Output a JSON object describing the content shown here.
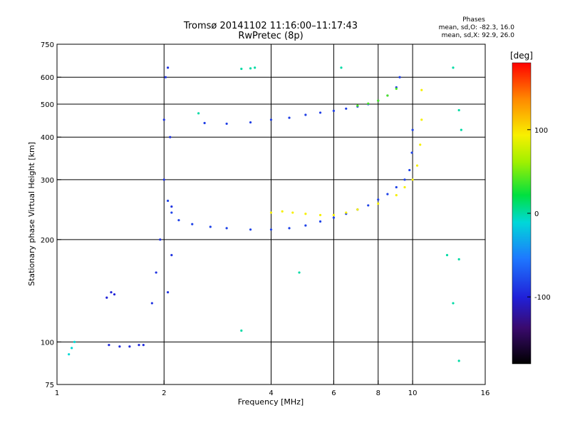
{
  "chart_data": {
    "type": "scatter",
    "title": "Tromsø 20141102 11:16:00–11:17:43",
    "subtitle": "RwPretec (8p)",
    "xlabel": "Frequency [MHz]",
    "ylabel": "Stationary phase Virtual Height [km]",
    "x_scale": "log",
    "y_scale": "log",
    "xlim": [
      1,
      16
    ],
    "ylim": [
      75,
      750
    ],
    "x_ticks": [
      1,
      2,
      4,
      6,
      8,
      10,
      16
    ],
    "y_ticks": [
      75,
      100,
      200,
      300,
      400,
      500,
      600,
      750
    ],
    "x_gridlines": [
      2,
      4,
      6,
      8,
      10
    ],
    "y_gridlines": [
      100,
      200,
      300,
      400,
      500,
      600
    ],
    "grid": true,
    "stats": {
      "title": "Phases",
      "line_o": "mean, sd,O: -82.3, 16.0",
      "line_x": "mean, sd,X:  92.9, 26.0"
    },
    "colorbar": {
      "label": "[deg]",
      "range": [
        -180,
        180
      ],
      "ticks": [
        100,
        0,
        -100
      ],
      "tick_labels": [
        "100",
        "0",
        "-100"
      ]
    },
    "traces": [
      {
        "description": "O-mode F-layer trace",
        "phase": -82,
        "points": [
          [
            2.05,
            260
          ],
          [
            2.1,
            240
          ],
          [
            2.2,
            228
          ],
          [
            2.4,
            222
          ],
          [
            2.7,
            218
          ],
          [
            3.0,
            216
          ],
          [
            3.5,
            214
          ],
          [
            4.0,
            214
          ],
          [
            4.5,
            216
          ],
          [
            5.0,
            220
          ],
          [
            5.5,
            226
          ],
          [
            6.0,
            232
          ],
          [
            6.5,
            238
          ],
          [
            7.0,
            245
          ],
          [
            7.5,
            252
          ],
          [
            8.0,
            262
          ],
          [
            8.5,
            272
          ],
          [
            9.0,
            285
          ],
          [
            9.5,
            300
          ],
          [
            9.8,
            320
          ],
          [
            9.95,
            360
          ],
          [
            10.0,
            420
          ]
        ]
      },
      {
        "description": "X-mode F-layer trace",
        "phase": 93,
        "points": [
          [
            4.0,
            240
          ],
          [
            4.3,
            242
          ],
          [
            4.6,
            240
          ],
          [
            5.0,
            238
          ],
          [
            5.5,
            236
          ],
          [
            6.0,
            236
          ],
          [
            6.5,
            240
          ],
          [
            7.0,
            245
          ],
          [
            8.0,
            255
          ],
          [
            9.0,
            270
          ],
          [
            9.5,
            285
          ],
          [
            10.0,
            300
          ],
          [
            10.3,
            330
          ],
          [
            10.5,
            380
          ],
          [
            10.6,
            450
          ],
          [
            10.6,
            550
          ]
        ]
      },
      {
        "description": "Upper O-mode trace",
        "phase": -85,
        "points": [
          [
            2.6,
            440
          ],
          [
            3.0,
            438
          ],
          [
            3.5,
            442
          ],
          [
            4.0,
            450
          ],
          [
            4.5,
            456
          ],
          [
            5.0,
            465
          ],
          [
            5.5,
            472
          ],
          [
            6.0,
            478
          ],
          [
            6.5,
            485
          ],
          [
            7.0,
            492
          ],
          [
            7.5,
            500
          ],
          [
            8.0,
            512
          ],
          [
            8.5,
            530
          ],
          [
            9.0,
            560
          ],
          [
            9.2,
            600
          ]
        ]
      },
      {
        "description": "Upper X-mode trace",
        "phase": 40,
        "points": [
          [
            7.0,
            495
          ],
          [
            7.5,
            502
          ],
          [
            8.0,
            512
          ],
          [
            8.5,
            530
          ],
          [
            9.0,
            555
          ]
        ]
      },
      {
        "description": "E-region / spread echoes near 2 MHz",
        "phase": -90,
        "points": [
          [
            1.85,
            130
          ],
          [
            1.9,
            160
          ],
          [
            1.95,
            200
          ],
          [
            2.0,
            300
          ],
          [
            2.0,
            450
          ],
          [
            2.02,
            600
          ],
          [
            2.05,
            640
          ],
          [
            2.08,
            400
          ],
          [
            2.1,
            250
          ],
          [
            2.1,
            180
          ],
          [
            2.05,
            140
          ]
        ]
      },
      {
        "description": "Low-altitude echoes ~98 km",
        "phase": -95,
        "points": [
          [
            1.4,
            98
          ],
          [
            1.5,
            97
          ],
          [
            1.6,
            97
          ],
          [
            1.7,
            98
          ],
          [
            1.75,
            98
          ]
        ]
      },
      {
        "description": "Echoes near 1.4 MHz",
        "phase": -100,
        "points": [
          [
            1.38,
            135
          ],
          [
            1.42,
            140
          ],
          [
            1.45,
            138
          ]
        ]
      },
      {
        "description": "Echoes near 1.1 MHz",
        "phase": -10,
        "points": [
          [
            1.08,
            92
          ],
          [
            1.1,
            96
          ],
          [
            1.12,
            100
          ]
        ]
      },
      {
        "description": "Isolated points",
        "phase": 0,
        "points": [
          [
            3.3,
            635
          ],
          [
            3.5,
            637
          ],
          [
            3.6,
            640
          ],
          [
            6.3,
            640
          ],
          [
            13.0,
            640
          ],
          [
            13.0,
            130
          ],
          [
            13.5,
            480
          ],
          [
            13.7,
            420
          ],
          [
            13.5,
            175
          ],
          [
            4.8,
            160
          ],
          [
            3.3,
            108
          ],
          [
            13.5,
            88
          ],
          [
            12.5,
            180
          ],
          [
            2.5,
            470
          ]
        ]
      }
    ]
  }
}
